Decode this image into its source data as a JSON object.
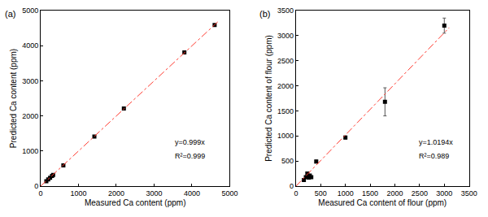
{
  "chart_data": [
    {
      "type": "scatter",
      "panel_label": "(a)",
      "x_label": "Measured Ca content (ppm)",
      "y_label": "Predicted Ca content (ppm)",
      "annotations": [
        "y=0.999x",
        "R²=0.999"
      ],
      "xlim": [
        0,
        5000
      ],
      "ylim": [
        0,
        5000
      ],
      "xticks": [
        0,
        1000,
        2000,
        3000,
        4000,
        5000
      ],
      "yticks": [
        0,
        1000,
        2000,
        3000,
        4000,
        5000
      ],
      "grid": false,
      "series": [
        {
          "type": "scatter",
          "marker": "square",
          "color": "#000000",
          "x": [
            150,
            200,
            250,
            300,
            330,
            600,
            1420,
            2200,
            3800,
            4600
          ],
          "values": [
            140,
            190,
            240,
            290,
            320,
            590,
            1410,
            2210,
            3810,
            4590
          ]
        },
        {
          "type": "line",
          "line_style": "dashdot",
          "color": "#ff3b30",
          "x": [
            0,
            4700
          ],
          "values": [
            0,
            4695
          ]
        }
      ]
    },
    {
      "type": "scatter",
      "panel_label": "(b)",
      "x_label": "Measured Ca content of flour (ppm)",
      "y_label": "Predicted Ca content of flour (ppm)",
      "annotations": [
        "y=1.0194x",
        "R²=0.989"
      ],
      "xlim": [
        0,
        3500
      ],
      "ylim": [
        0,
        3500
      ],
      "xticks": [
        0,
        500,
        1000,
        1500,
        2000,
        2500,
        3000,
        3500
      ],
      "yticks": [
        0,
        500,
        1000,
        1500,
        2000,
        2500,
        3000,
        3500
      ],
      "grid": false,
      "series": [
        {
          "type": "scatter",
          "marker": "square",
          "color": "#000000",
          "x": [
            160,
            200,
            230,
            260,
            280,
            310,
            410,
            1000,
            1800,
            3000
          ],
          "values": [
            120,
            180,
            250,
            170,
            210,
            180,
            490,
            970,
            1680,
            3200
          ],
          "error": [
            20,
            20,
            30,
            20,
            20,
            20,
            30,
            30,
            280,
            150
          ]
        },
        {
          "type": "line",
          "line_style": "dashdot",
          "color": "#ff3b30",
          "x": [
            0,
            3100
          ],
          "values": [
            0,
            3160
          ]
        }
      ]
    }
  ]
}
